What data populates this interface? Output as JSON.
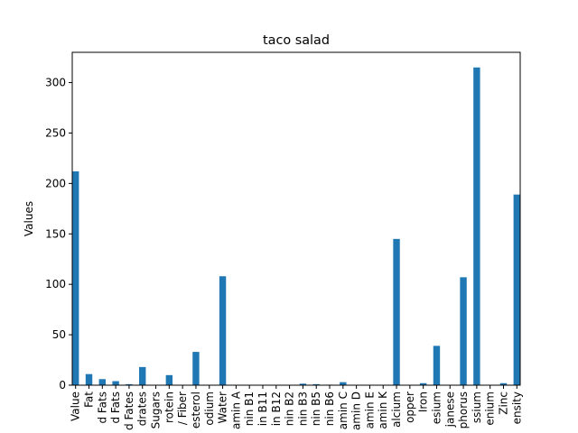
{
  "chart_data": {
    "type": "bar",
    "title": "taco salad",
    "xlabel": "",
    "ylabel": "Values",
    "ylim": [
      0,
      330
    ],
    "yticks": [
      0,
      50,
      100,
      150,
      200,
      250,
      300
    ],
    "grid": false,
    "legend": "none",
    "bar_color": "#1f77b4",
    "categories": [
      "Value",
      "Fat",
      "d Fats",
      "d Fats",
      "d Fates",
      "drates",
      "Sugars",
      "rotein",
      "/ Fiber",
      "esterol",
      "odium",
      "Water",
      "amin A",
      "nin B1",
      "in B11",
      "in B12",
      "nin B2",
      "nin B3",
      "nin B5",
      "nin B6",
      "amin C",
      "amin D",
      "amin E",
      "amin K",
      "alcium",
      "opper",
      "Iron",
      "esium",
      "janese",
      "phorus",
      "ssium",
      "enium",
      "Zinc",
      "ensity"
    ],
    "values": [
      212,
      11,
      6,
      4,
      1,
      18,
      0,
      10,
      0,
      33,
      0,
      108,
      0,
      0,
      0,
      0,
      0,
      1.5,
      1,
      0.5,
      3,
      0,
      0,
      0,
      145,
      0,
      2,
      39,
      0,
      107,
      315,
      0,
      2,
      189
    ]
  }
}
